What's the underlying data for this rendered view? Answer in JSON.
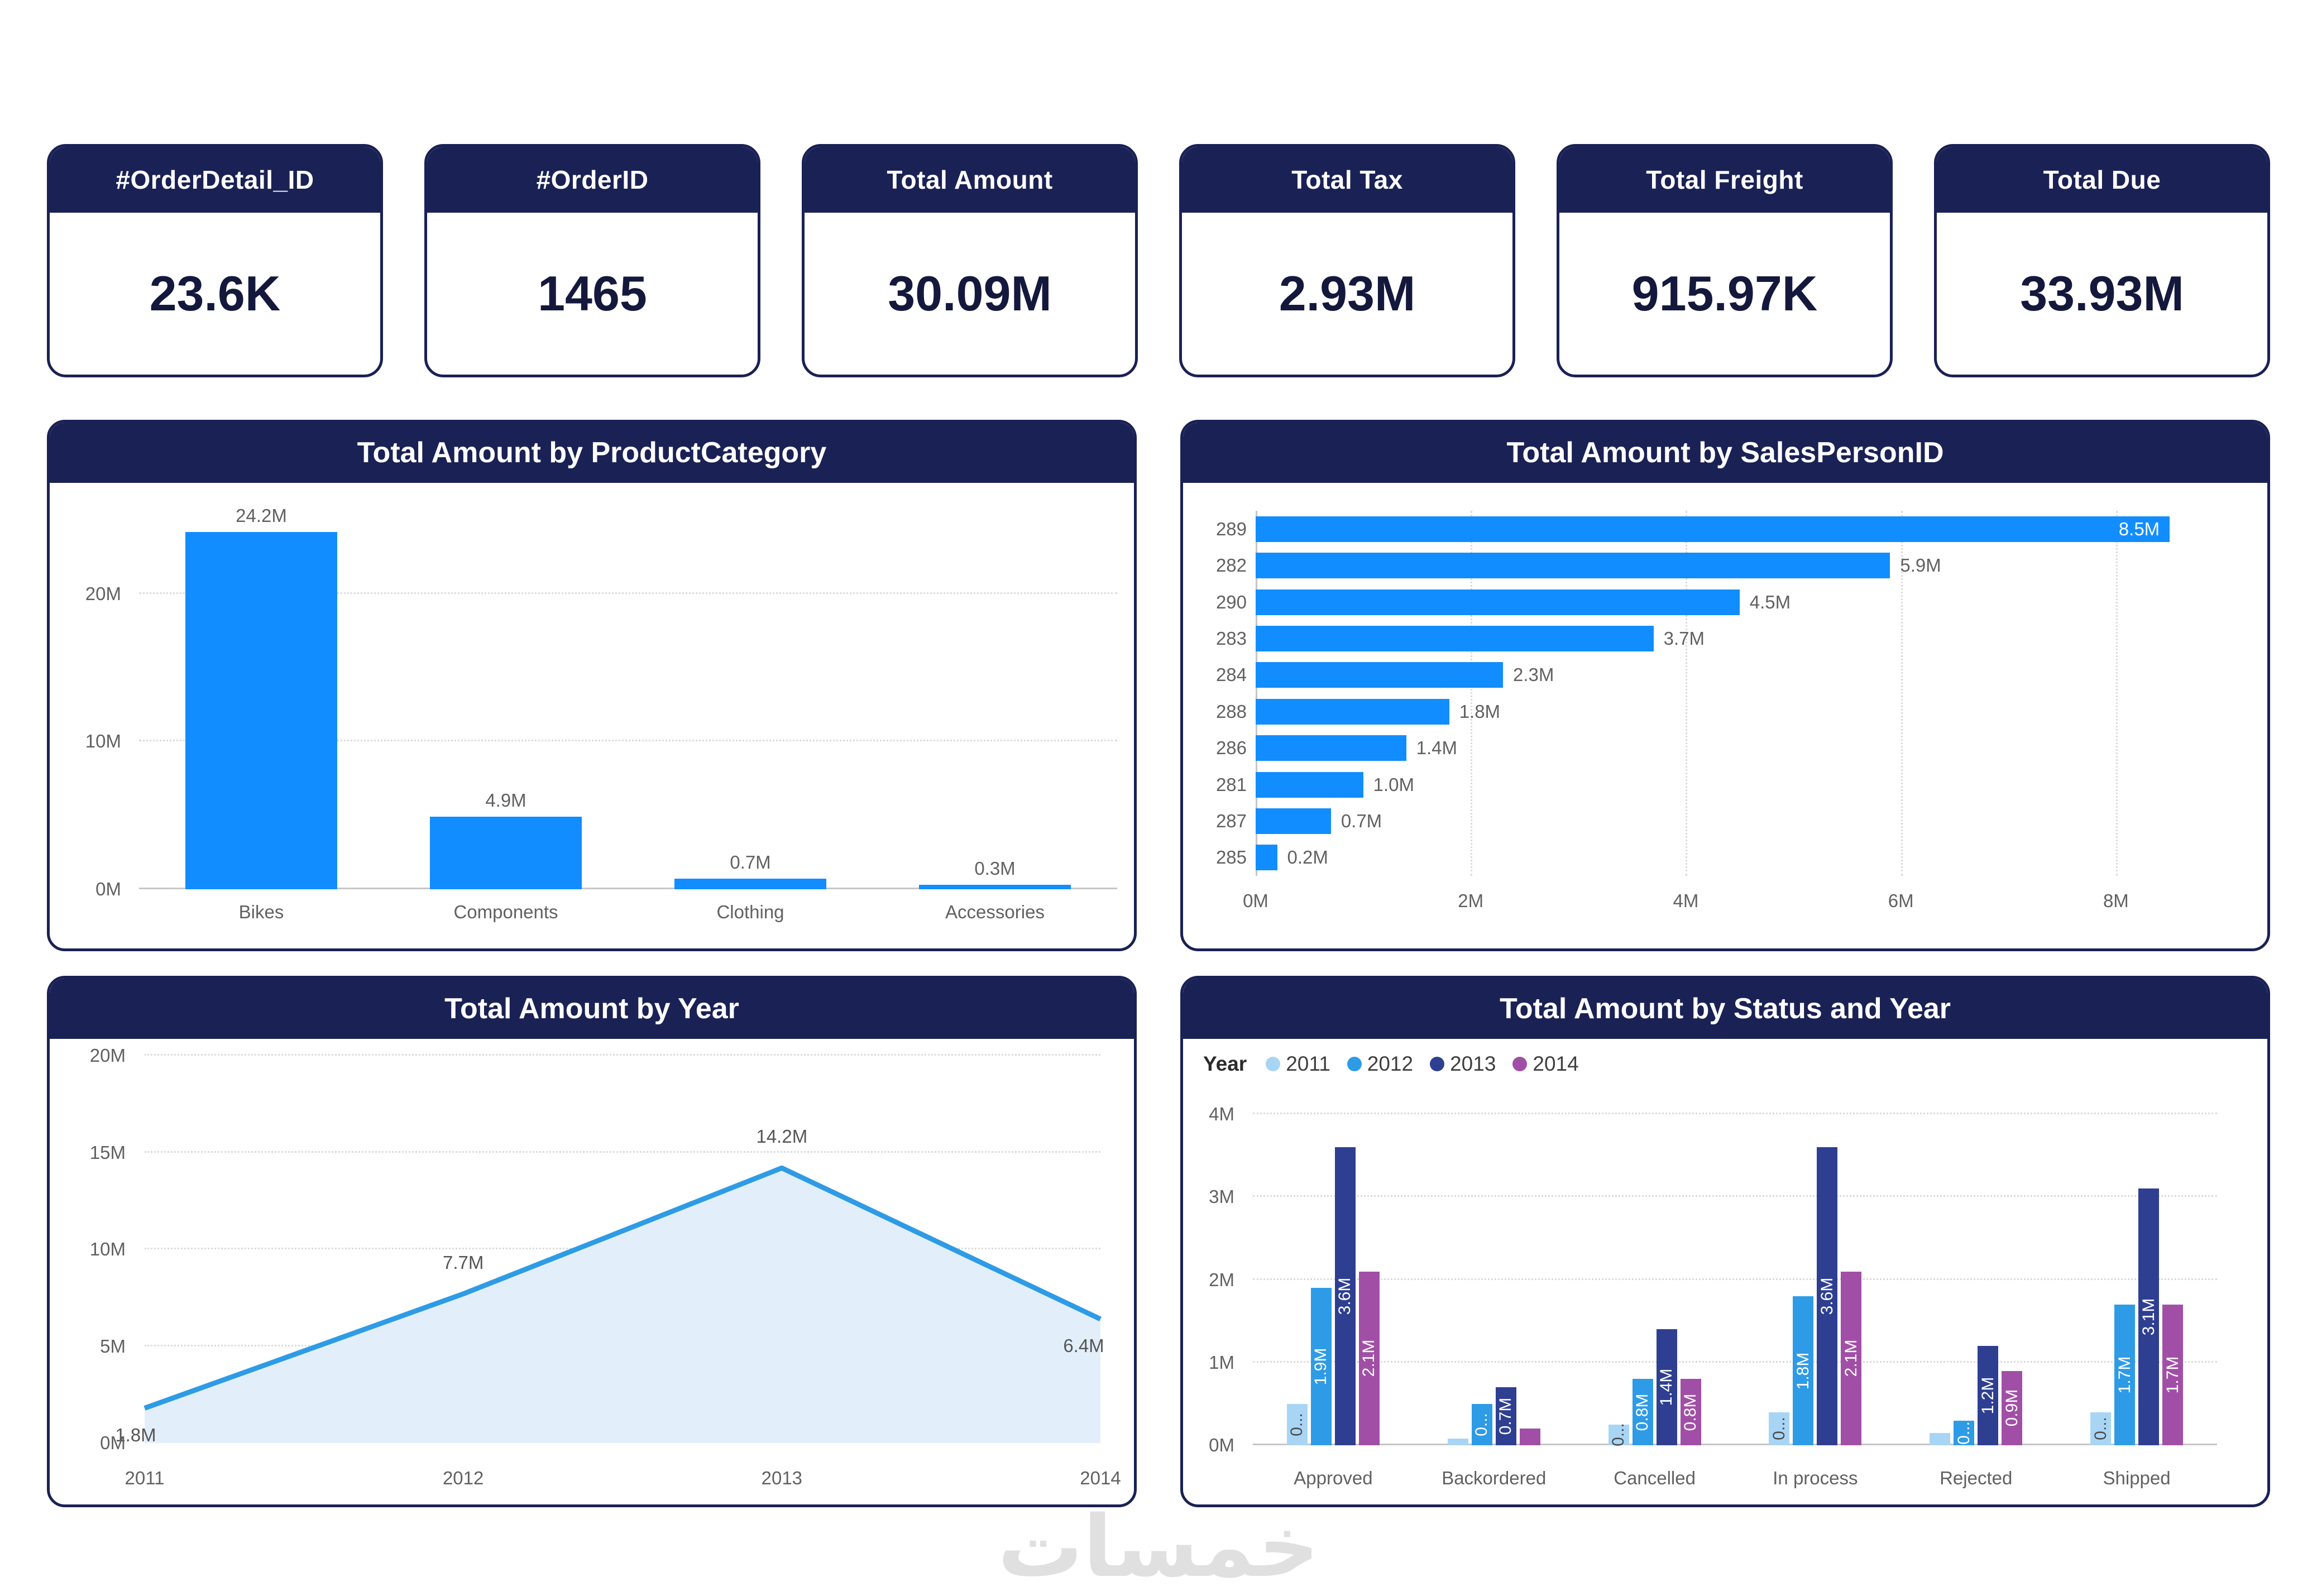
{
  "watermark": "خمسات",
  "colors": {
    "navy": "#1A2155",
    "bar_blue": "#118DFF",
    "line_blue": "#2E9BE6",
    "area_fill": "#E2EFFB",
    "axis_text": "#616161",
    "kpi_text": "#14183C",
    "watermark_gray": "#E0E0E0"
  },
  "kpi_cards": [
    {
      "label": "#OrderDetail_ID",
      "value": "23.6K"
    },
    {
      "label": "#OrderID",
      "value": "1465"
    },
    {
      "label": "Total Amount",
      "value": "30.09M"
    },
    {
      "label": "Total Tax",
      "value": "2.93M"
    },
    {
      "label": "Total Freight",
      "value": "915.97K"
    },
    {
      "label": "Total Due",
      "value": "33.93M"
    }
  ],
  "chart_data": [
    {
      "id": "product_category",
      "type": "bar",
      "title": "Total Amount by ProductCategory",
      "categories": [
        "Bikes",
        "Components",
        "Clothing",
        "Accessories"
      ],
      "values": [
        24.2,
        4.9,
        0.7,
        0.3
      ],
      "labels": [
        "24.2M",
        "4.9M",
        "0.7M",
        "0.3M"
      ],
      "ylabel": "",
      "xlabel": "",
      "yticks": [
        "0M",
        "10M",
        "20M"
      ],
      "ytick_values": [
        0,
        10,
        20
      ],
      "ylim": [
        0,
        26
      ],
      "grid": "horizontal-dotted",
      "legend": "none"
    },
    {
      "id": "salesperson",
      "type": "bar",
      "orientation": "horizontal",
      "title": "Total Amount by SalesPersonID",
      "categories": [
        "289",
        "282",
        "290",
        "283",
        "284",
        "288",
        "286",
        "281",
        "287",
        "285"
      ],
      "values": [
        8.5,
        5.9,
        4.5,
        3.7,
        2.3,
        1.8,
        1.4,
        1.0,
        0.7,
        0.2
      ],
      "labels": [
        "8.5M",
        "5.9M",
        "4.5M",
        "3.7M",
        "2.3M",
        "1.8M",
        "1.4M",
        "1.0M",
        "0.7M",
        "0.2M"
      ],
      "xticks": [
        "0M",
        "2M",
        "4M",
        "6M",
        "8M"
      ],
      "xtick_values": [
        0,
        2,
        4,
        6,
        8
      ],
      "xlim": [
        0,
        9.2
      ],
      "grid": "vertical-dotted",
      "legend": "none"
    },
    {
      "id": "year_trend",
      "type": "area",
      "title": "Total Amount by Year",
      "x": [
        "2011",
        "2012",
        "2013",
        "2014"
      ],
      "values": [
        1.8,
        7.7,
        14.2,
        6.4
      ],
      "labels": [
        "1.8M",
        "7.7M",
        "14.2M",
        "6.4M"
      ],
      "yticks": [
        "0M",
        "5M",
        "10M",
        "15M",
        "20M"
      ],
      "ytick_values": [
        0,
        5,
        10,
        15,
        20
      ],
      "ylim": [
        0,
        20
      ],
      "grid": "horizontal-dotted",
      "legend": "none"
    },
    {
      "id": "status_year",
      "type": "bar",
      "grouping": "clustered",
      "title": "Total Amount by Status and Year",
      "legend_title": "Year",
      "legend_position": "top-left",
      "categories": [
        "Approved",
        "Backordered",
        "Cancelled",
        "In process",
        "Rejected",
        "Shipped"
      ],
      "series": [
        {
          "name": "2011",
          "color": "#A9D5F5",
          "values": [
            0.5,
            0.08,
            0.25,
            0.4,
            0.15,
            0.4
          ],
          "labels": [
            "0...",
            "",
            "0...",
            "0...",
            "",
            "0..."
          ]
        },
        {
          "name": "2012",
          "color": "#2E9BE6",
          "values": [
            1.9,
            0.5,
            0.8,
            1.8,
            0.3,
            1.7
          ],
          "labels": [
            "1.9M",
            "0...",
            "0.8M",
            "1.8M",
            "0...",
            "1.7M"
          ]
        },
        {
          "name": "2013",
          "color": "#2E3F92",
          "values": [
            3.6,
            0.7,
            1.4,
            3.6,
            1.2,
            3.1
          ],
          "labels": [
            "3.6M",
            "0.7M",
            "1.4M",
            "3.6M",
            "1.2M",
            "3.1M"
          ]
        },
        {
          "name": "2014",
          "color": "#A14FA6",
          "values": [
            2.1,
            0.2,
            0.8,
            2.1,
            0.9,
            1.7
          ],
          "labels": [
            "2.1M",
            "",
            "0.8M",
            "2.1M",
            "0.9M",
            "1.7M"
          ]
        }
      ],
      "yticks": [
        "0M",
        "1M",
        "2M",
        "3M",
        "4M"
      ],
      "ytick_values": [
        0,
        1,
        2,
        3,
        4
      ],
      "ylim": [
        0,
        4.25
      ],
      "grid": "horizontal-dotted"
    }
  ]
}
